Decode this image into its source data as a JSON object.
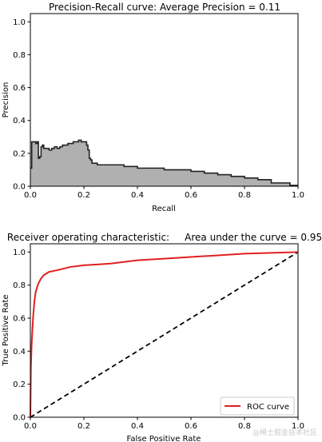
{
  "watermark": "@稀土掘金技术社区",
  "colors": {
    "pr_fill": "#b0b0b0",
    "pr_line": "#222222",
    "roc_line": "#e02020",
    "diag_line": "#000000"
  },
  "chart_data": [
    {
      "type": "area",
      "title": "Precision-Recall curve: Average Precision =      0.11",
      "xlabel": "Recall",
      "ylabel": "Precision",
      "xlim": [
        0,
        1.0
      ],
      "ylim": [
        0,
        1.05
      ],
      "xticks": [
        "0.0",
        "0.2",
        "0.4",
        "0.6",
        "0.8",
        "1.0"
      ],
      "yticks": [
        "0.0",
        "0.2",
        "0.4",
        "0.6",
        "0.8",
        "1.0"
      ],
      "grid": false,
      "series": [
        {
          "style": "step-post filled",
          "x": [
            0.0,
            0.005,
            0.01,
            0.02,
            0.025,
            0.03,
            0.035,
            0.04,
            0.045,
            0.05,
            0.06,
            0.07,
            0.08,
            0.09,
            0.1,
            0.11,
            0.12,
            0.13,
            0.14,
            0.15,
            0.16,
            0.17,
            0.18,
            0.19,
            0.2,
            0.21,
            0.215,
            0.22,
            0.225,
            0.23,
            0.25,
            0.3,
            0.35,
            0.4,
            0.45,
            0.5,
            0.55,
            0.6,
            0.65,
            0.7,
            0.75,
            0.8,
            0.85,
            0.9,
            0.95,
            0.97,
            1.0
          ],
          "y": [
            0.11,
            0.27,
            0.27,
            0.26,
            0.27,
            0.17,
            0.18,
            0.24,
            0.25,
            0.23,
            0.23,
            0.22,
            0.23,
            0.24,
            0.23,
            0.24,
            0.25,
            0.25,
            0.26,
            0.26,
            0.27,
            0.27,
            0.28,
            0.27,
            0.27,
            0.25,
            0.22,
            0.17,
            0.16,
            0.14,
            0.13,
            0.13,
            0.12,
            0.11,
            0.11,
            0.1,
            0.1,
            0.09,
            0.08,
            0.07,
            0.06,
            0.05,
            0.04,
            0.02,
            0.02,
            0.005,
            0.005
          ]
        }
      ]
    },
    {
      "type": "line",
      "title": "Receiver operating characteristic:     Area under the curve = 0.95",
      "xlabel": "False Positive Rate",
      "ylabel": "True Positive Rate",
      "xlim": [
        0,
        1.0
      ],
      "ylim": [
        0,
        1.05
      ],
      "xticks": [
        "0.0",
        "0.2",
        "0.4",
        "0.6",
        "0.8",
        "1.0"
      ],
      "yticks": [
        "0.0",
        "0.2",
        "0.4",
        "0.6",
        "0.8",
        "1.0"
      ],
      "grid": false,
      "legend_position": "lower-right",
      "series": [
        {
          "name": "ROC curve",
          "x": [
            0.0,
            0.002,
            0.005,
            0.01,
            0.015,
            0.02,
            0.03,
            0.04,
            0.05,
            0.07,
            0.1,
            0.15,
            0.2,
            0.3,
            0.4,
            0.5,
            0.6,
            0.7,
            0.8,
            0.9,
            1.0
          ],
          "y": [
            0.0,
            0.3,
            0.45,
            0.6,
            0.7,
            0.76,
            0.81,
            0.84,
            0.86,
            0.88,
            0.89,
            0.91,
            0.92,
            0.93,
            0.95,
            0.96,
            0.97,
            0.98,
            0.99,
            0.995,
            1.0
          ]
        },
        {
          "style": "dashed",
          "x": [
            0.0,
            1.0
          ],
          "y": [
            0.0,
            1.0
          ]
        }
      ]
    }
  ]
}
